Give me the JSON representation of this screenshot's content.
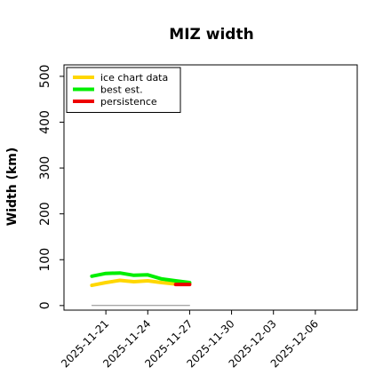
{
  "chart_data": {
    "type": "line",
    "title": "MIZ width",
    "xlabel": "",
    "ylabel": "Width (km)",
    "ylim": [
      -10,
      525
    ],
    "yticks": [
      0,
      100,
      200,
      300,
      400,
      500
    ],
    "x_range": [
      "2025-11-18",
      "2025-12-09"
    ],
    "xticks": [
      "2025-11-21",
      "2025-11-24",
      "2025-11-27",
      "2025-11-30",
      "2025-12-03",
      "2025-12-06"
    ],
    "legend_position": "top-left",
    "series": [
      {
        "name": "ice chart data",
        "color": "#FFD700",
        "x": [
          "2025-11-20",
          "2025-11-21",
          "2025-11-22",
          "2025-11-23",
          "2025-11-24",
          "2025-11-25",
          "2025-11-26",
          "2025-11-27"
        ],
        "values": [
          44,
          50,
          55,
          52,
          54,
          50,
          47,
          48
        ]
      },
      {
        "name": "best est.",
        "color": "#00EE00",
        "x": [
          "2025-11-20",
          "2025-11-21",
          "2025-11-22",
          "2025-11-23",
          "2025-11-24",
          "2025-11-25",
          "2025-11-26",
          "2025-11-27"
        ],
        "values": [
          64,
          70,
          71,
          66,
          67,
          58,
          54,
          50
        ]
      },
      {
        "name": "persistence",
        "color": "#EE0000",
        "x": [
          "2025-11-26",
          "2025-11-27"
        ],
        "values": [
          46,
          46
        ]
      },
      {
        "name": "",
        "color": "#888888",
        "x": [
          "2025-11-20",
          "2025-11-27"
        ],
        "values": [
          0,
          0
        ]
      }
    ]
  }
}
